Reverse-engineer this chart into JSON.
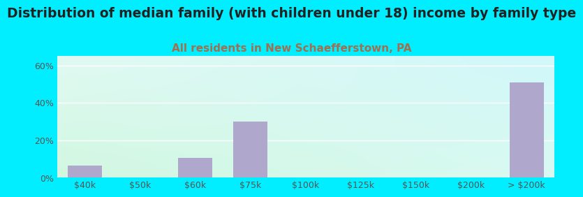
{
  "title": "Distribution of median family (with children under 18) income by family type",
  "subtitle": "All residents in New Schaefferstown, PA",
  "categories": [
    "$40k",
    "$50k",
    "$60k",
    "$75k",
    "$100k",
    "$125k",
    "$150k",
    "$200k",
    "> $200k"
  ],
  "values": [
    6.5,
    0,
    10.5,
    30,
    0,
    0,
    0,
    0,
    51
  ],
  "bar_color": "#b0a8cc",
  "title_color": "#222222",
  "subtitle_color": "#a07050",
  "bg_outer": "#00eeff",
  "ylim": [
    0,
    65
  ],
  "yticks": [
    0,
    20,
    40,
    60
  ],
  "ytick_labels": [
    "0%",
    "20%",
    "40%",
    "60%"
  ],
  "title_fontsize": 13.5,
  "subtitle_fontsize": 11,
  "tick_fontsize": 9,
  "grad_topleft": [
    0.88,
    0.98,
    0.95
  ],
  "grad_topright": [
    0.82,
    0.97,
    0.98
  ],
  "grad_bottomleft": [
    0.82,
    0.97,
    0.88
  ],
  "grad_bottomright": [
    0.85,
    0.98,
    0.95
  ]
}
